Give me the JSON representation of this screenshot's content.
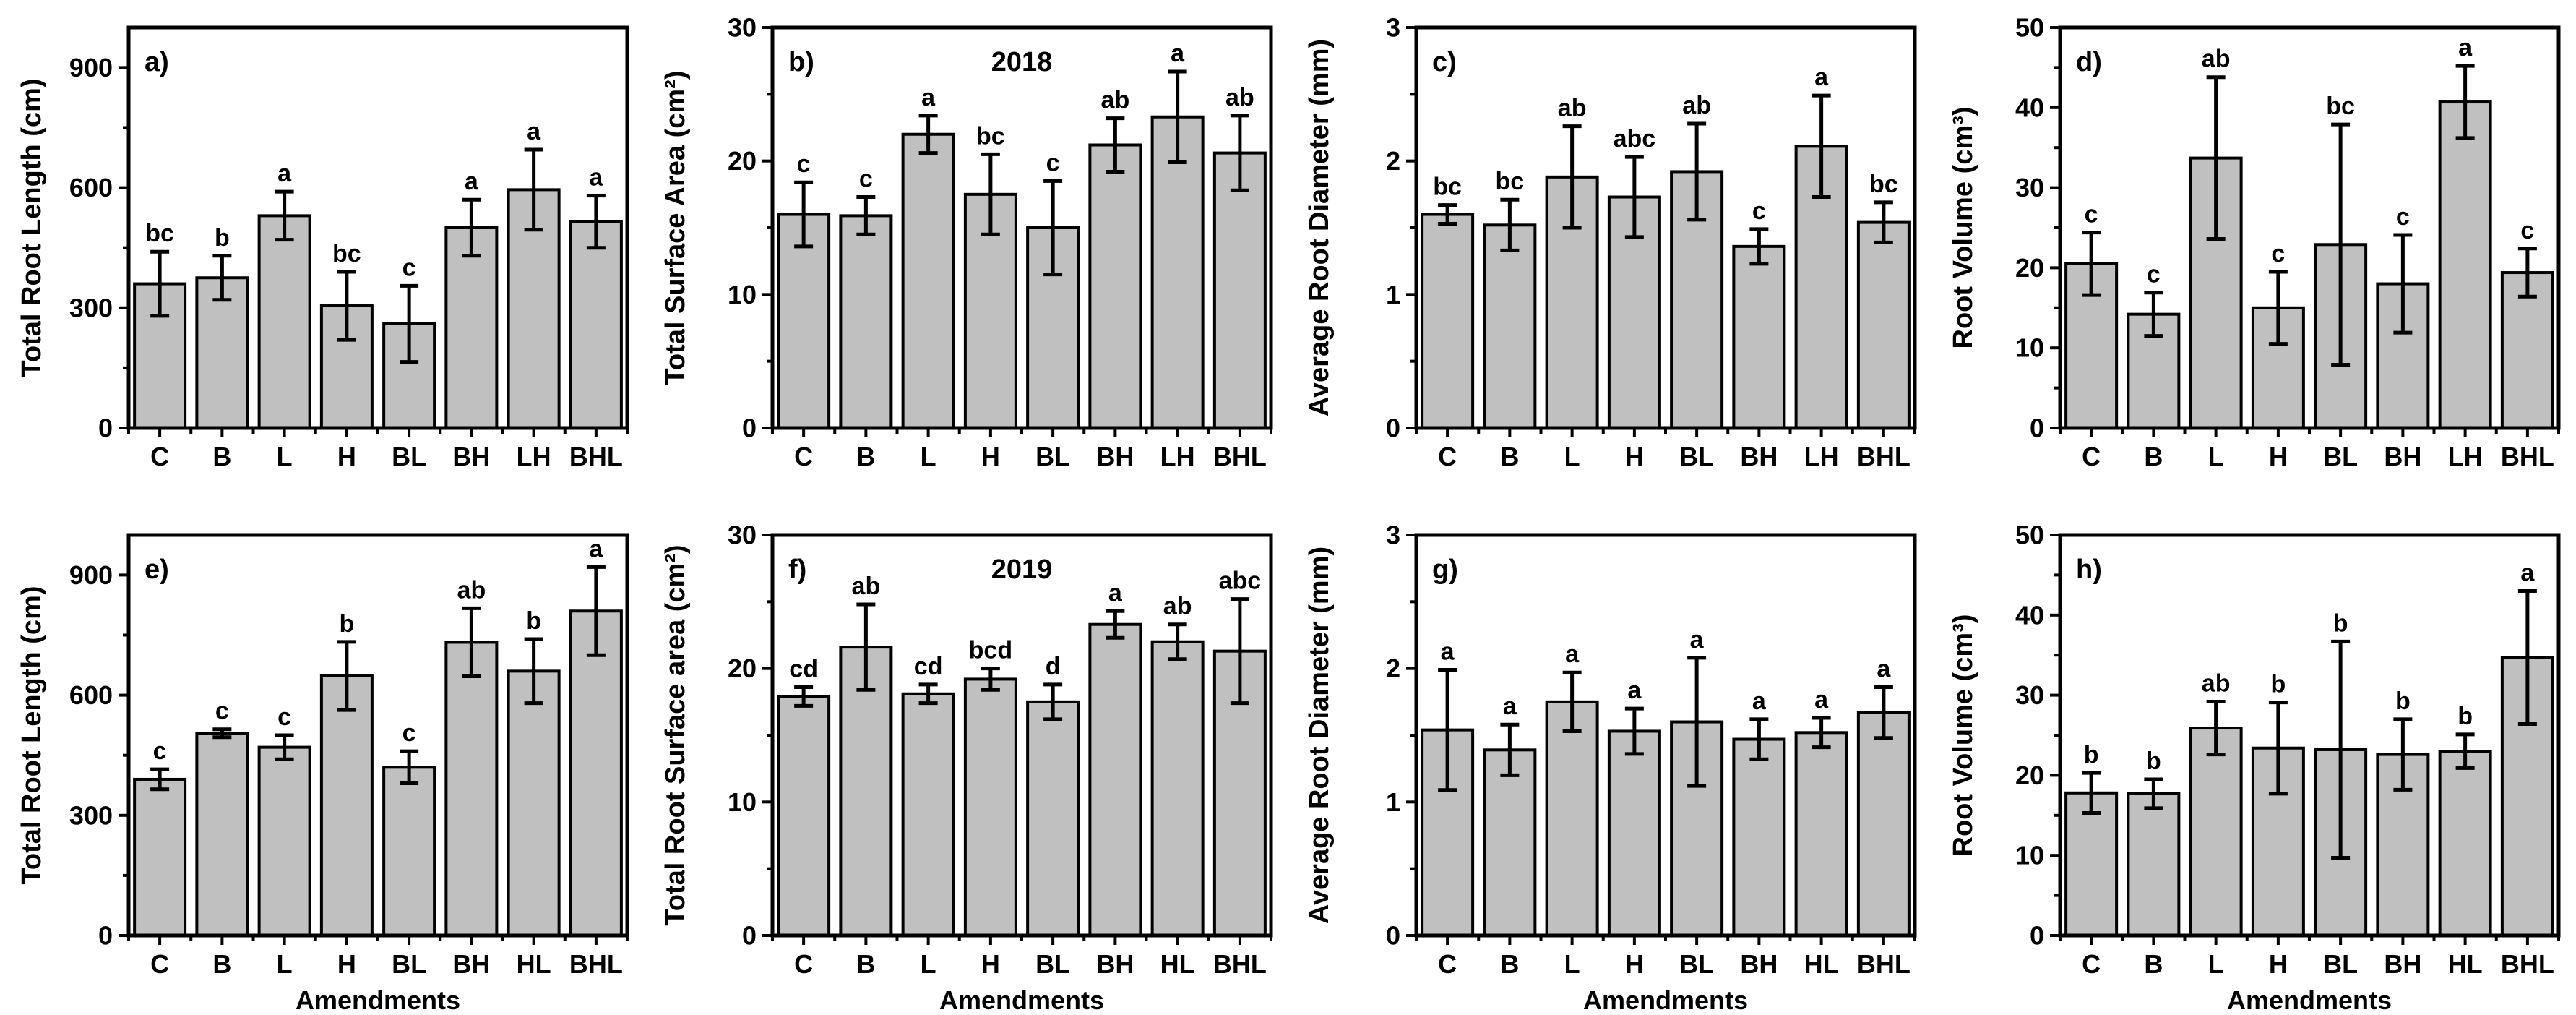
{
  "figure": {
    "background": "#ffffff",
    "bar_fill": "#c0c0c0",
    "bar_stroke": "#000000",
    "axis_color": "#000000",
    "text_color": "#000000",
    "rows": [
      [
        "a",
        "b",
        "c",
        "d"
      ],
      [
        "e",
        "f",
        "g",
        "h"
      ]
    ]
  },
  "chart_data": [
    {
      "id": "a",
      "panel_label": "a)",
      "title": "",
      "type": "bar",
      "ylabel": "Total Root Length (cm)",
      "xlabel": "",
      "categories": [
        "C",
        "B",
        "L",
        "H",
        "BL",
        "BH",
        "LH",
        "BHL"
      ],
      "values": [
        360,
        375,
        530,
        305,
        260,
        500,
        595,
        515
      ],
      "errors": [
        80,
        55,
        60,
        85,
        95,
        70,
        100,
        65
      ],
      "sig_letters": [
        "bc",
        "b",
        "a",
        "bc",
        "c",
        "a",
        "a",
        "a"
      ],
      "ylim": [
        0,
        1000
      ],
      "yticks": [
        0,
        300,
        600,
        900
      ],
      "y_minor_step": 150,
      "grid": false,
      "legend": null
    },
    {
      "id": "b",
      "panel_label": "b)",
      "title": "2018",
      "type": "bar",
      "ylabel": "Total Surface Area (cm²)",
      "xlabel": "",
      "categories": [
        "C",
        "B",
        "L",
        "H",
        "BL",
        "BH",
        "LH",
        "BHL"
      ],
      "values": [
        16.0,
        15.9,
        22.0,
        17.5,
        15.0,
        21.2,
        23.3,
        20.6
      ],
      "errors": [
        2.4,
        1.4,
        1.4,
        3.0,
        3.5,
        2.0,
        3.4,
        2.8
      ],
      "sig_letters": [
        "c",
        "c",
        "a",
        "bc",
        "c",
        "ab",
        "a",
        "ab"
      ],
      "ylim": [
        0,
        30
      ],
      "yticks": [
        0,
        10,
        20,
        30
      ],
      "y_minor_step": 5,
      "grid": false,
      "legend": null
    },
    {
      "id": "c",
      "panel_label": "c)",
      "title": "",
      "type": "bar",
      "ylabel": "Average Root Diameter (mm)",
      "xlabel": "",
      "categories": [
        "C",
        "B",
        "L",
        "H",
        "BL",
        "BH",
        "LH",
        "BHL"
      ],
      "values": [
        1.6,
        1.52,
        1.88,
        1.73,
        1.92,
        1.36,
        2.11,
        1.54
      ],
      "errors": [
        0.07,
        0.19,
        0.38,
        0.3,
        0.36,
        0.13,
        0.38,
        0.15
      ],
      "sig_letters": [
        "bc",
        "bc",
        "ab",
        "abc",
        "ab",
        "c",
        "a",
        "bc"
      ],
      "ylim": [
        0,
        3
      ],
      "yticks": [
        0,
        1,
        2,
        3
      ],
      "y_minor_step": 0.5,
      "grid": false,
      "legend": null
    },
    {
      "id": "d",
      "panel_label": "d)",
      "title": "",
      "type": "bar",
      "ylabel": "Root Volume (cm³)",
      "xlabel": "",
      "categories": [
        "C",
        "B",
        "L",
        "H",
        "BL",
        "BH",
        "LH",
        "BHL"
      ],
      "values": [
        20.5,
        14.2,
        33.7,
        15.0,
        22.9,
        18.0,
        40.7,
        19.4
      ],
      "errors": [
        3.9,
        2.7,
        10.1,
        4.5,
        15.0,
        6.1,
        4.5,
        3.0
      ],
      "sig_letters": [
        "c",
        "c",
        "ab",
        "c",
        "bc",
        "c",
        "a",
        "c"
      ],
      "ylim": [
        0,
        50
      ],
      "yticks": [
        0,
        10,
        20,
        30,
        40,
        50
      ],
      "y_minor_step": 5,
      "grid": false,
      "legend": null
    },
    {
      "id": "e",
      "panel_label": "e)",
      "title": "",
      "type": "bar",
      "ylabel": "Total Root Length (cm)",
      "xlabel": "Amendments",
      "categories": [
        "C",
        "B",
        "L",
        "H",
        "BL",
        "BH",
        "HL",
        "BHL"
      ],
      "values": [
        390,
        505,
        470,
        648,
        420,
        732,
        660,
        810
      ],
      "errors": [
        25,
        10,
        30,
        85,
        40,
        85,
        80,
        110
      ],
      "sig_letters": [
        "c",
        "c",
        "c",
        "b",
        "c",
        "ab",
        "b",
        "a"
      ],
      "ylim": [
        0,
        1000
      ],
      "yticks": [
        0,
        300,
        600,
        900
      ],
      "y_minor_step": 150,
      "grid": false,
      "legend": null
    },
    {
      "id": "f",
      "panel_label": "f)",
      "title": "2019",
      "type": "bar",
      "ylabel": "Total Root Surface area (cm²)",
      "xlabel": "Amendments",
      "categories": [
        "C",
        "B",
        "L",
        "H",
        "BL",
        "BH",
        "HL",
        "BHL"
      ],
      "values": [
        17.9,
        21.6,
        18.1,
        19.2,
        17.5,
        23.3,
        22.0,
        21.3
      ],
      "errors": [
        0.7,
        3.2,
        0.7,
        0.8,
        1.3,
        1.0,
        1.3,
        3.9
      ],
      "sig_letters": [
        "cd",
        "ab",
        "cd",
        "bcd",
        "d",
        "a",
        "ab",
        "abc"
      ],
      "ylim": [
        0,
        30
      ],
      "yticks": [
        0,
        10,
        20,
        30
      ],
      "y_minor_step": 5,
      "grid": false,
      "legend": null
    },
    {
      "id": "g",
      "panel_label": "g)",
      "title": "",
      "type": "bar",
      "ylabel": "Average Root Diameter (mm)",
      "xlabel": "Amendments",
      "categories": [
        "C",
        "B",
        "L",
        "H",
        "BL",
        "BH",
        "HL",
        "BHL"
      ],
      "values": [
        1.54,
        1.39,
        1.75,
        1.53,
        1.6,
        1.47,
        1.52,
        1.67
      ],
      "errors": [
        0.45,
        0.19,
        0.22,
        0.17,
        0.48,
        0.15,
        0.11,
        0.19
      ],
      "sig_letters": [
        "a",
        "a",
        "a",
        "a",
        "a",
        "a",
        "a",
        "a"
      ],
      "ylim": [
        0,
        3
      ],
      "yticks": [
        0,
        1,
        2,
        3
      ],
      "y_minor_step": 0.5,
      "grid": false,
      "legend": null
    },
    {
      "id": "h",
      "panel_label": "h)",
      "title": "",
      "type": "bar",
      "ylabel": "Root Volume (cm³)",
      "xlabel": "Amendments",
      "categories": [
        "C",
        "B",
        "L",
        "H",
        "BL",
        "BH",
        "HL",
        "BHL"
      ],
      "values": [
        17.8,
        17.7,
        25.9,
        23.4,
        23.2,
        22.6,
        23.0,
        34.7
      ],
      "errors": [
        2.5,
        1.8,
        3.3,
        5.7,
        13.5,
        4.4,
        2.1,
        8.3
      ],
      "sig_letters": [
        "b",
        "b",
        "ab",
        "b",
        "b",
        "b",
        "b",
        "a"
      ],
      "ylim": [
        0,
        50
      ],
      "yticks": [
        0,
        10,
        20,
        30,
        40,
        50
      ],
      "y_minor_step": 5,
      "grid": false,
      "legend": null
    }
  ]
}
